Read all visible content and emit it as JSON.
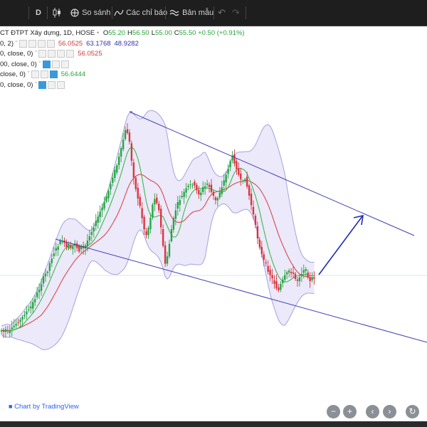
{
  "toolbar": {
    "interval": "D",
    "compare_label": "So sánh",
    "indicators_label": "Các chỉ báo",
    "template_label": "Bản mẫu"
  },
  "legend": {
    "title": "CT ĐTPT Xây dựng, 1D, HOSE",
    "ohlc": [
      {
        "label": "O",
        "value": "55.20"
      },
      {
        "label": "H",
        "value": "56.50"
      },
      {
        "label": "L",
        "value": "55.00"
      },
      {
        "label": "C",
        "value": "55.50"
      }
    ],
    "change": "+0.50 (+0.91%)",
    "indicators": [
      {
        "name": "0, 2)",
        "values": [
          "56.0525",
          "63.1768",
          "48.9282"
        ],
        "value_colors": [
          "#d23b3b",
          "#3030b0",
          "#3030b0"
        ]
      },
      {
        "name": "0, close, 0)",
        "values": [
          "56.0525"
        ],
        "value_colors": [
          "#d23b3b"
        ]
      },
      {
        "name": "00, close, 0)",
        "values": [],
        "value_colors": []
      },
      {
        "name": "close, 0)",
        "values": [
          "56.6444"
        ],
        "value_colors": [
          "#2aa43a"
        ]
      },
      {
        "name": "0, close, 0)",
        "values": [],
        "value_colors": []
      }
    ]
  },
  "footer": {
    "credit": "Chart by TradingView"
  },
  "colors": {
    "up": "#26a641",
    "down": "#d9363e",
    "trend": "#3f3fb5",
    "band_fill": "#ebe9fa",
    "band_line": "#a6a2df",
    "ma_red": "#d84a4a",
    "ma_green": "#3dbb4a"
  },
  "icons": [
    "candles-icon",
    "compare-icon",
    "indicators-icon",
    "template-icon",
    "undo-icon",
    "redo-icon",
    "zoom-out-icon",
    "zoom-in-icon",
    "scroll-left-icon",
    "scroll-right-icon",
    "reset-icon"
  ]
}
